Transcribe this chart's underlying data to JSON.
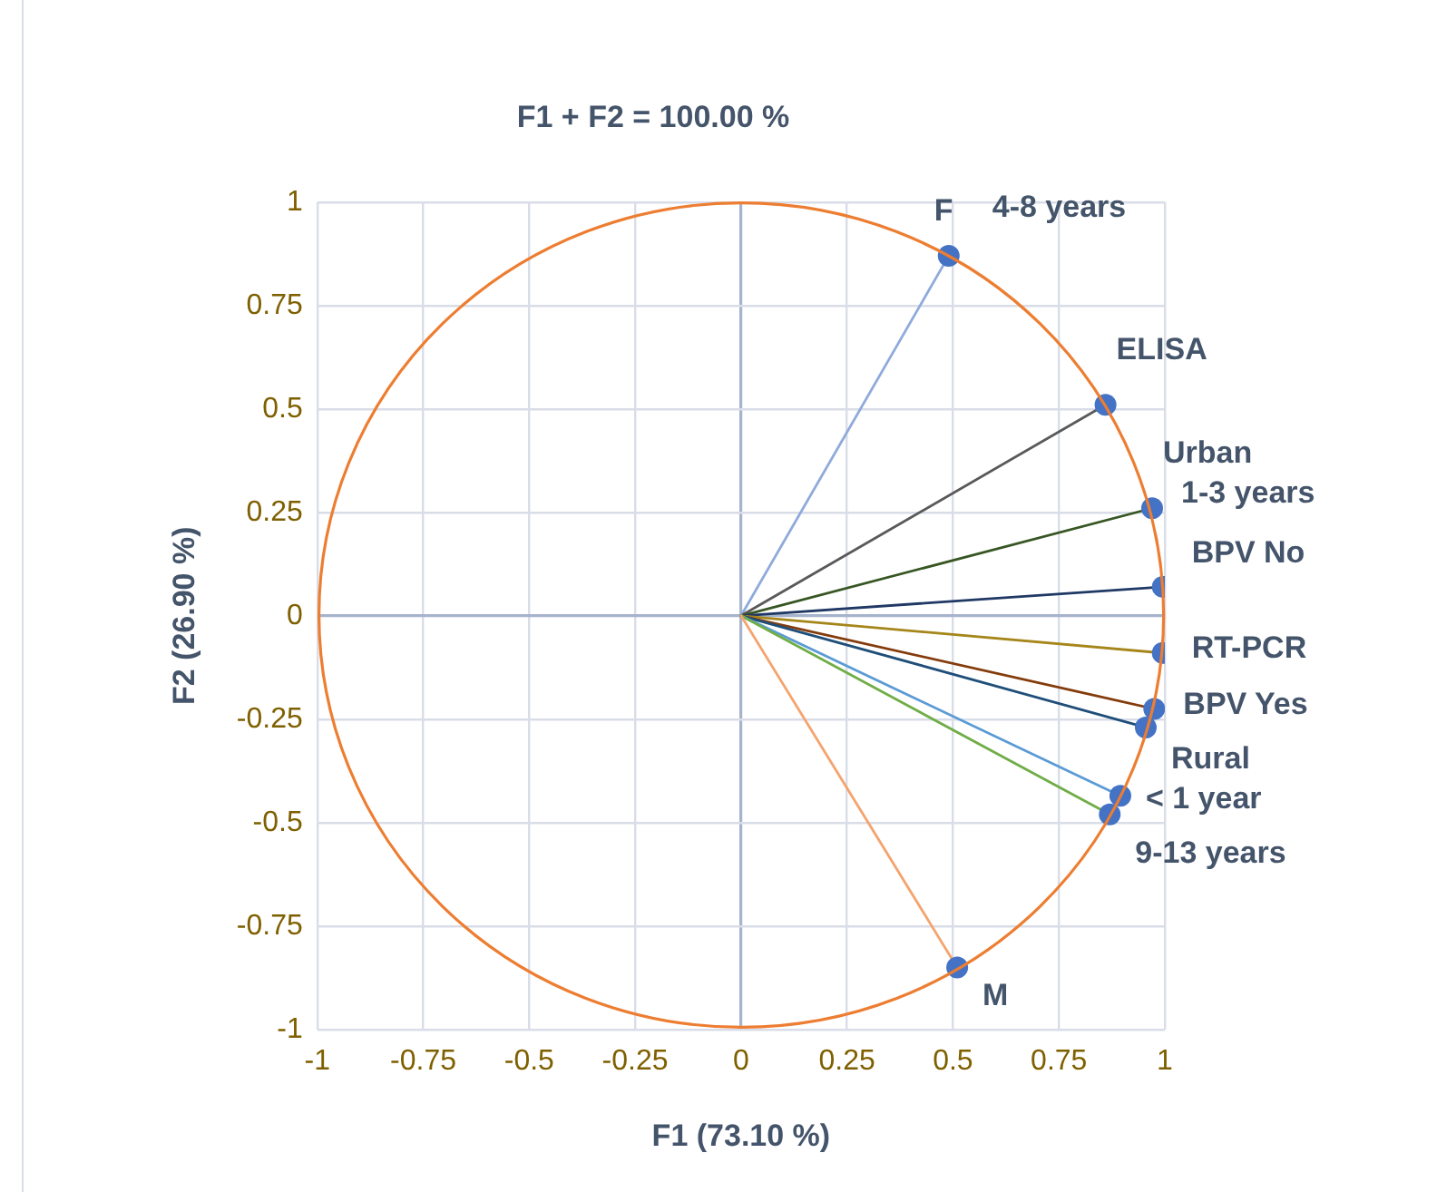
{
  "chart_data": {
    "type": "line",
    "title": "F1 + F2 = 100.00 %",
    "xlabel": "F1 (73.10 %)",
    "ylabel": "F2 (26.90 %)",
    "xlim": [
      -1,
      1
    ],
    "ylim": [
      -1,
      1
    ],
    "xticks": [
      -1,
      -0.75,
      -0.5,
      -0.25,
      0,
      0.25,
      0.5,
      0.75,
      1
    ],
    "yticks": [
      -1,
      -0.75,
      -0.5,
      -0.25,
      0,
      0.25,
      0.5,
      0.75,
      1
    ],
    "grid": true,
    "legend": false,
    "marker": "circle",
    "series": [
      {
        "type": "line",
        "color": "#8faadc",
        "x": [
          0,
          0.49
        ],
        "values": [
          0,
          0.87
        ]
      },
      {
        "type": "line",
        "color": "#595959",
        "x": [
          0,
          0.86
        ],
        "values": [
          0,
          0.51
        ]
      },
      {
        "type": "line",
        "color": "#375623",
        "x": [
          0,
          0.97
        ],
        "values": [
          0,
          0.26
        ]
      },
      {
        "type": "line",
        "color": "#203864",
        "x": [
          0,
          0.995
        ],
        "values": [
          0,
          0.07
        ]
      },
      {
        "type": "line",
        "color": "#a5861a",
        "x": [
          0,
          0.995
        ],
        "values": [
          0,
          -0.09
        ]
      },
      {
        "type": "line",
        "color": "#843c0c",
        "x": [
          0,
          0.975
        ],
        "values": [
          0,
          -0.225
        ]
      },
      {
        "type": "line",
        "color": "#1f4e79",
        "x": [
          0,
          0.955
        ],
        "values": [
          0,
          -0.27
        ]
      },
      {
        "type": "line",
        "color": "#5b9bd5",
        "x": [
          0,
          0.895
        ],
        "values": [
          0,
          -0.435
        ]
      },
      {
        "type": "line",
        "color": "#70ad47",
        "x": [
          0,
          0.87
        ],
        "values": [
          0,
          -0.48
        ]
      },
      {
        "type": "line",
        "color": "#f4a46e",
        "x": [
          0,
          0.51
        ],
        "values": [
          0,
          -0.85
        ]
      }
    ],
    "annotations": [
      {
        "text": "F",
        "x": 0.49,
        "y": 0.87
      },
      {
        "text": "4-8 years",
        "x": 0.49,
        "y": 0.87
      },
      {
        "text": "ELISA",
        "x": 0.86,
        "y": 0.51
      },
      {
        "text": "Urban",
        "x": 0.97,
        "y": 0.26
      },
      {
        "text": "1-3 years",
        "x": 0.97,
        "y": 0.26
      },
      {
        "text": "BPV No",
        "x": 0.995,
        "y": 0.07
      },
      {
        "text": "RT-PCR",
        "x": 0.995,
        "y": -0.09
      },
      {
        "text": "BPV Yes",
        "x": 0.975,
        "y": -0.225
      },
      {
        "text": "Rural",
        "x": 0.955,
        "y": -0.27
      },
      {
        "text": "< 1 year",
        "x": 0.895,
        "y": -0.435
      },
      {
        "text": "9-13 years",
        "x": 0.87,
        "y": -0.48
      },
      {
        "text": "M",
        "x": 0.51,
        "y": -0.85
      }
    ]
  }
}
